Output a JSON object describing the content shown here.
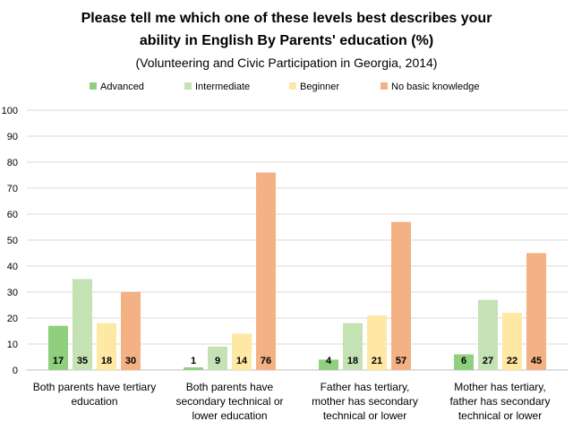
{
  "chart_data": {
    "type": "bar",
    "title_line1": "Please tell me which one of these levels best describes your",
    "title_line2": "ability in English By Parents' education (%)",
    "subtitle": "(Volunteering and Civic Participation in Georgia, 2014)",
    "ylim": [
      0,
      100
    ],
    "yticks": [
      "0",
      "10",
      "20",
      "30",
      "40",
      "50",
      "60",
      "70",
      "80",
      "90",
      "100"
    ],
    "grid": true,
    "legend_position": "top",
    "categories": [
      [
        "Both parents have tertiary",
        "education"
      ],
      [
        "Both parents have",
        "secondary technical or",
        "lower education"
      ],
      [
        "Father has tertiary,",
        "mother has secondary",
        "technical or lower"
      ],
      [
        "Mother has tertiary,",
        "father has secondary",
        "technical or lower"
      ]
    ],
    "series": [
      {
        "name": "Advanced",
        "color": "#8fcf7e",
        "values": [
          17,
          1,
          4,
          6
        ],
        "labels": [
          "17",
          "1",
          "4",
          "6"
        ]
      },
      {
        "name": "Intermediate",
        "color": "#c5e2b5",
        "values": [
          35,
          9,
          18,
          27
        ],
        "labels": [
          "35",
          "9",
          "18",
          "27"
        ]
      },
      {
        "name": "Beginner",
        "color": "#ffe8a3",
        "values": [
          18,
          14,
          21,
          22
        ],
        "labels": [
          "18",
          "14",
          "21",
          "22"
        ]
      },
      {
        "name": "No basic knowledge",
        "color": "#f4b183",
        "values": [
          30,
          76,
          57,
          45
        ],
        "labels": [
          "30",
          "76",
          "57",
          "45"
        ]
      }
    ]
  }
}
